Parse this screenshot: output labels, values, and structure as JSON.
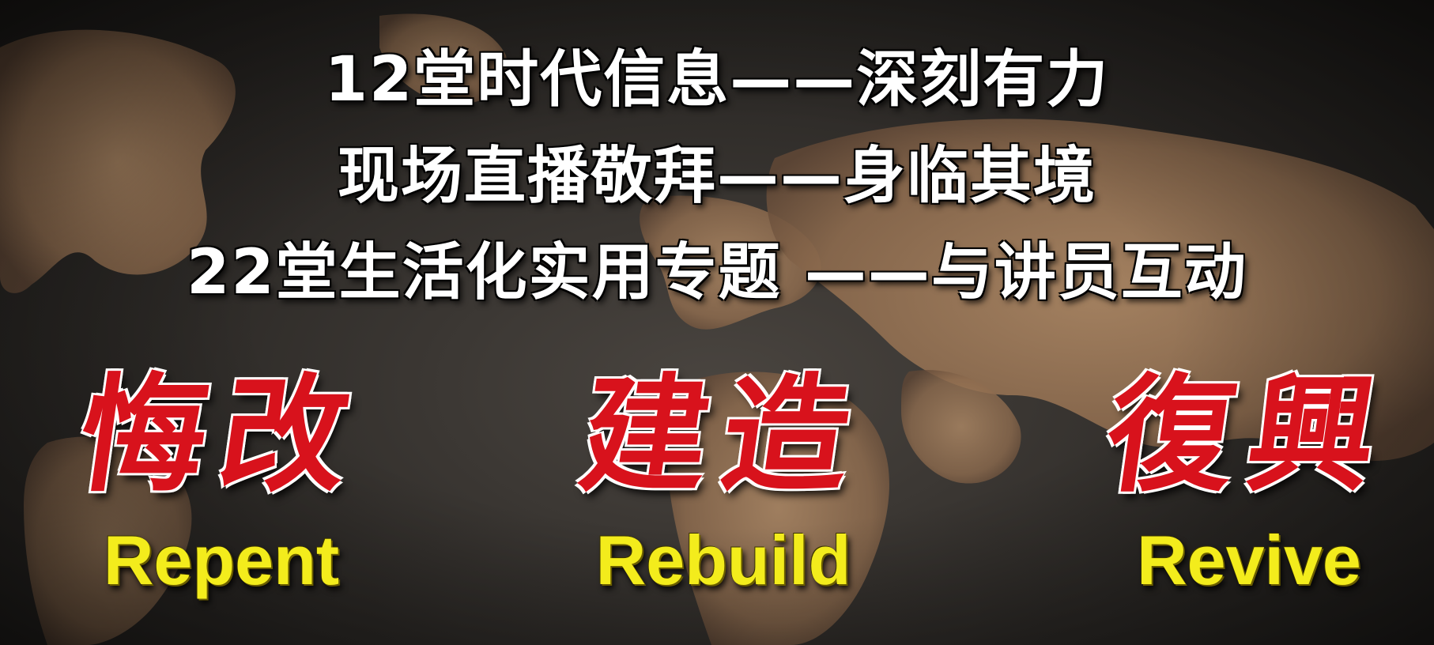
{
  "headlines": {
    "line1": "12堂时代信息——深刻有力",
    "line2": "现场直播敬拜——身临其境",
    "line3": "22堂生活化实用专题 ——与讲员互动"
  },
  "pillars": [
    {
      "chinese": "悔改",
      "english": "Repent"
    },
    {
      "chinese": "建造",
      "english": "Rebuild"
    },
    {
      "chinese": "復興",
      "english": "Revive"
    }
  ],
  "colors": {
    "background": "#2d2a27",
    "continent": "#9a7656",
    "headline_text": "#ffffff",
    "chinese_text": "#d8121c",
    "english_text": "#f3ec1c"
  }
}
